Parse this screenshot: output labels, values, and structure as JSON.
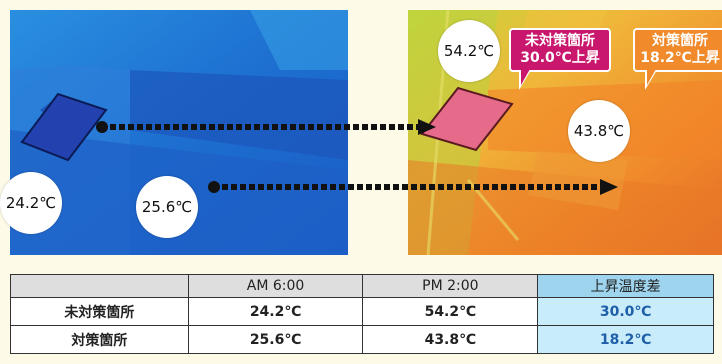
{
  "left_image": {
    "bubble_top": "24.2℃",
    "bubble_bottom": "25.6℃"
  },
  "right_image": {
    "bubble_top": "54.2℃",
    "bubble_bottom": "43.8℃",
    "callout_untreated": {
      "line1": "未対策箇所",
      "line2": "30.0℃上昇",
      "color": "#c8176c"
    },
    "callout_treated": {
      "line1": "対策箇所",
      "line2": "18.2℃上昇",
      "color": "#f08a2a"
    }
  },
  "table": {
    "headers": [
      "",
      "AM 6:00",
      "PM 2:00",
      "上昇温度差"
    ],
    "rows": [
      {
        "label": "未対策箇所",
        "am": "24.2℃",
        "pm": "54.2℃",
        "diff": "30.0℃"
      },
      {
        "label": "対策箇所",
        "am": "25.6℃",
        "pm": "43.8℃",
        "diff": "18.2℃"
      }
    ],
    "diff_color": "#1f5fa8"
  }
}
